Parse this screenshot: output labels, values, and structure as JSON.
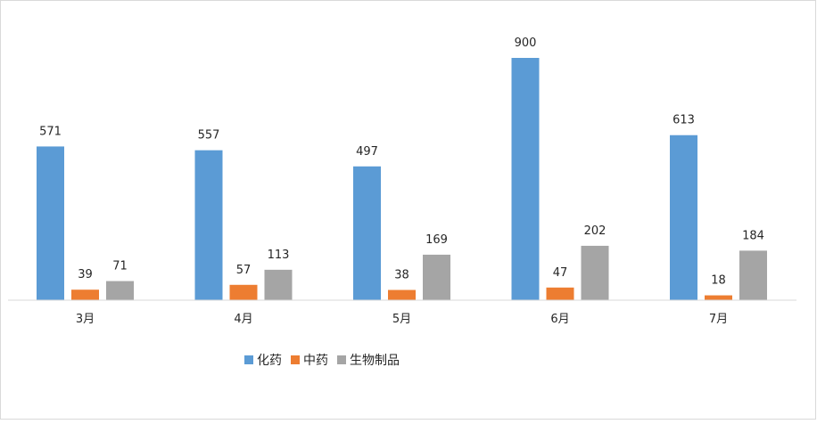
{
  "chart_data": {
    "type": "bar",
    "categories": [
      "3月",
      "4月",
      "5月",
      "6月",
      "7月"
    ],
    "series": [
      {
        "name": "化药",
        "color": "#5b9bd5",
        "values": [
          571,
          557,
          497,
          900,
          613
        ]
      },
      {
        "name": "中药",
        "color": "#ed7d31",
        "values": [
          39,
          57,
          38,
          47,
          18
        ]
      },
      {
        "name": "生物制品",
        "color": "#a5a5a5",
        "values": [
          71,
          113,
          169,
          202,
          184
        ]
      }
    ],
    "ylim": [
      0,
      900
    ],
    "grid": false,
    "legend_position": "bottom",
    "data_labels": true
  }
}
